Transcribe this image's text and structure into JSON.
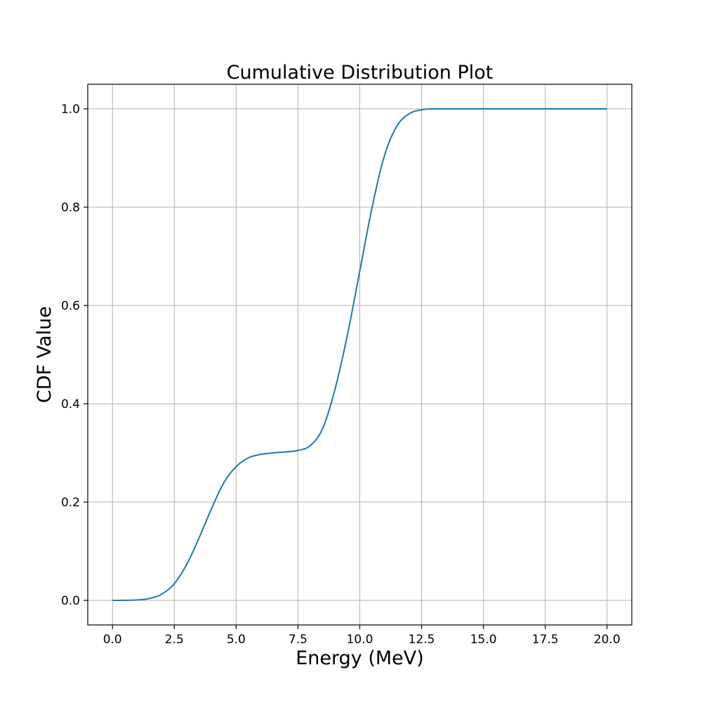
{
  "chart_data": {
    "type": "line",
    "title": "Cumulative Distribution Plot",
    "xlabel": "Energy (MeV)",
    "ylabel": "CDF Value",
    "xlim": [
      -1.0,
      21.0
    ],
    "ylim": [
      -0.05,
      1.05
    ],
    "xticks": [
      0.0,
      2.5,
      5.0,
      7.5,
      10.0,
      12.5,
      15.0,
      17.5,
      20.0
    ],
    "xtick_labels": [
      "0.0",
      "2.5",
      "5.0",
      "7.5",
      "10.0",
      "12.5",
      "15.0",
      "17.5",
      "20.0"
    ],
    "yticks": [
      0.0,
      0.2,
      0.4,
      0.6,
      0.8,
      1.0
    ],
    "ytick_labels": [
      "0.0",
      "0.2",
      "0.4",
      "0.6",
      "0.8",
      "1.0"
    ],
    "grid": true,
    "legend": false,
    "series": [
      {
        "color": "#1f77b4",
        "x": [
          0,
          0.5,
          1.0,
          1.5,
          2.0,
          2.5,
          3.0,
          3.5,
          4.0,
          4.5,
          5.0,
          5.5,
          6.0,
          6.5,
          7.0,
          7.5,
          8.0,
          8.5,
          9.0,
          9.5,
          10.0,
          10.5,
          11.0,
          11.5,
          12.0,
          12.5,
          13.0,
          13.5,
          14.0,
          15.0,
          16.0,
          17.0,
          18.0,
          19.0,
          20.0
        ],
        "y": [
          0.0,
          0.0002,
          0.0009,
          0.004,
          0.013,
          0.034,
          0.073,
          0.127,
          0.186,
          0.239,
          0.272,
          0.29,
          0.297,
          0.3,
          0.302,
          0.305,
          0.315,
          0.35,
          0.43,
          0.54,
          0.67,
          0.8,
          0.905,
          0.965,
          0.99,
          0.998,
          1.0,
          1.0,
          1.0,
          1.0,
          1.0,
          1.0,
          1.0,
          1.0,
          1.0
        ]
      }
    ]
  }
}
